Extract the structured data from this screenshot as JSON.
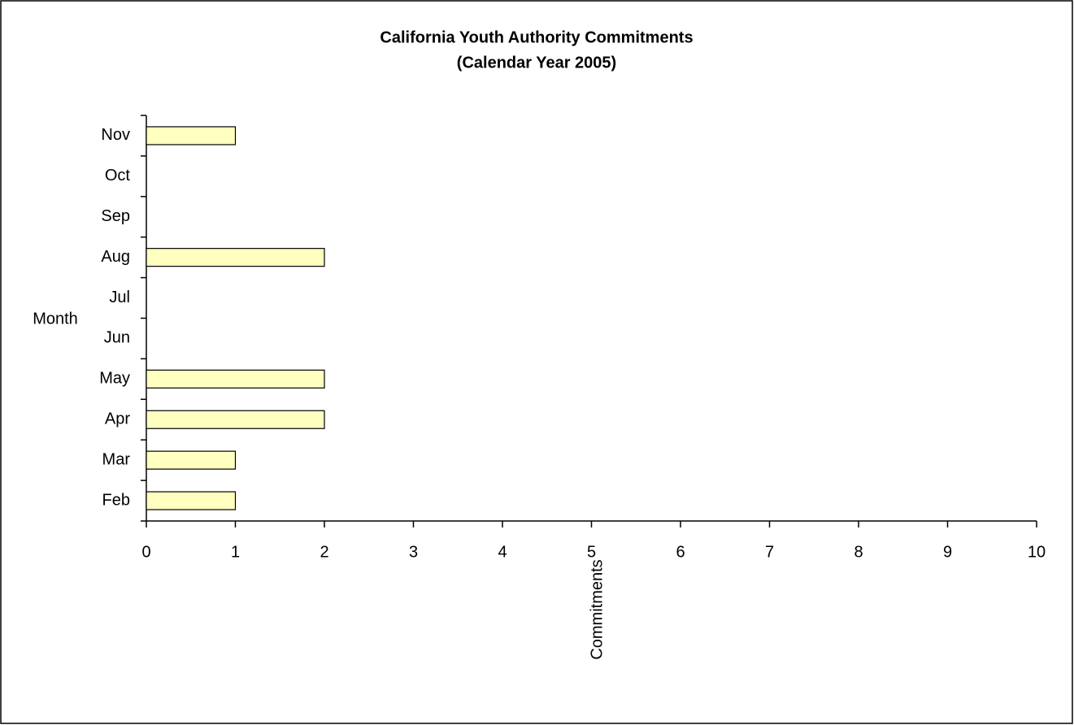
{
  "chart_data": {
    "type": "barh",
    "title": "California Youth Authority Commitments",
    "subtitle": "(Calendar Year 2005)",
    "x_label": "Commitments",
    "y_label": "Month",
    "categories": [
      "Feb",
      "Mar",
      "Apr",
      "May",
      "Jun",
      "Jul",
      "Aug",
      "Sep",
      "Oct",
      "Nov"
    ],
    "values": [
      1,
      1,
      2,
      2,
      0,
      0,
      2,
      0,
      0,
      1
    ],
    "color": "#ffffc0",
    "xlim": [
      0,
      10
    ],
    "xticks": [
      0,
      1,
      2,
      3,
      4,
      5,
      6,
      7,
      8,
      9,
      10
    ],
    "grid": false
  }
}
